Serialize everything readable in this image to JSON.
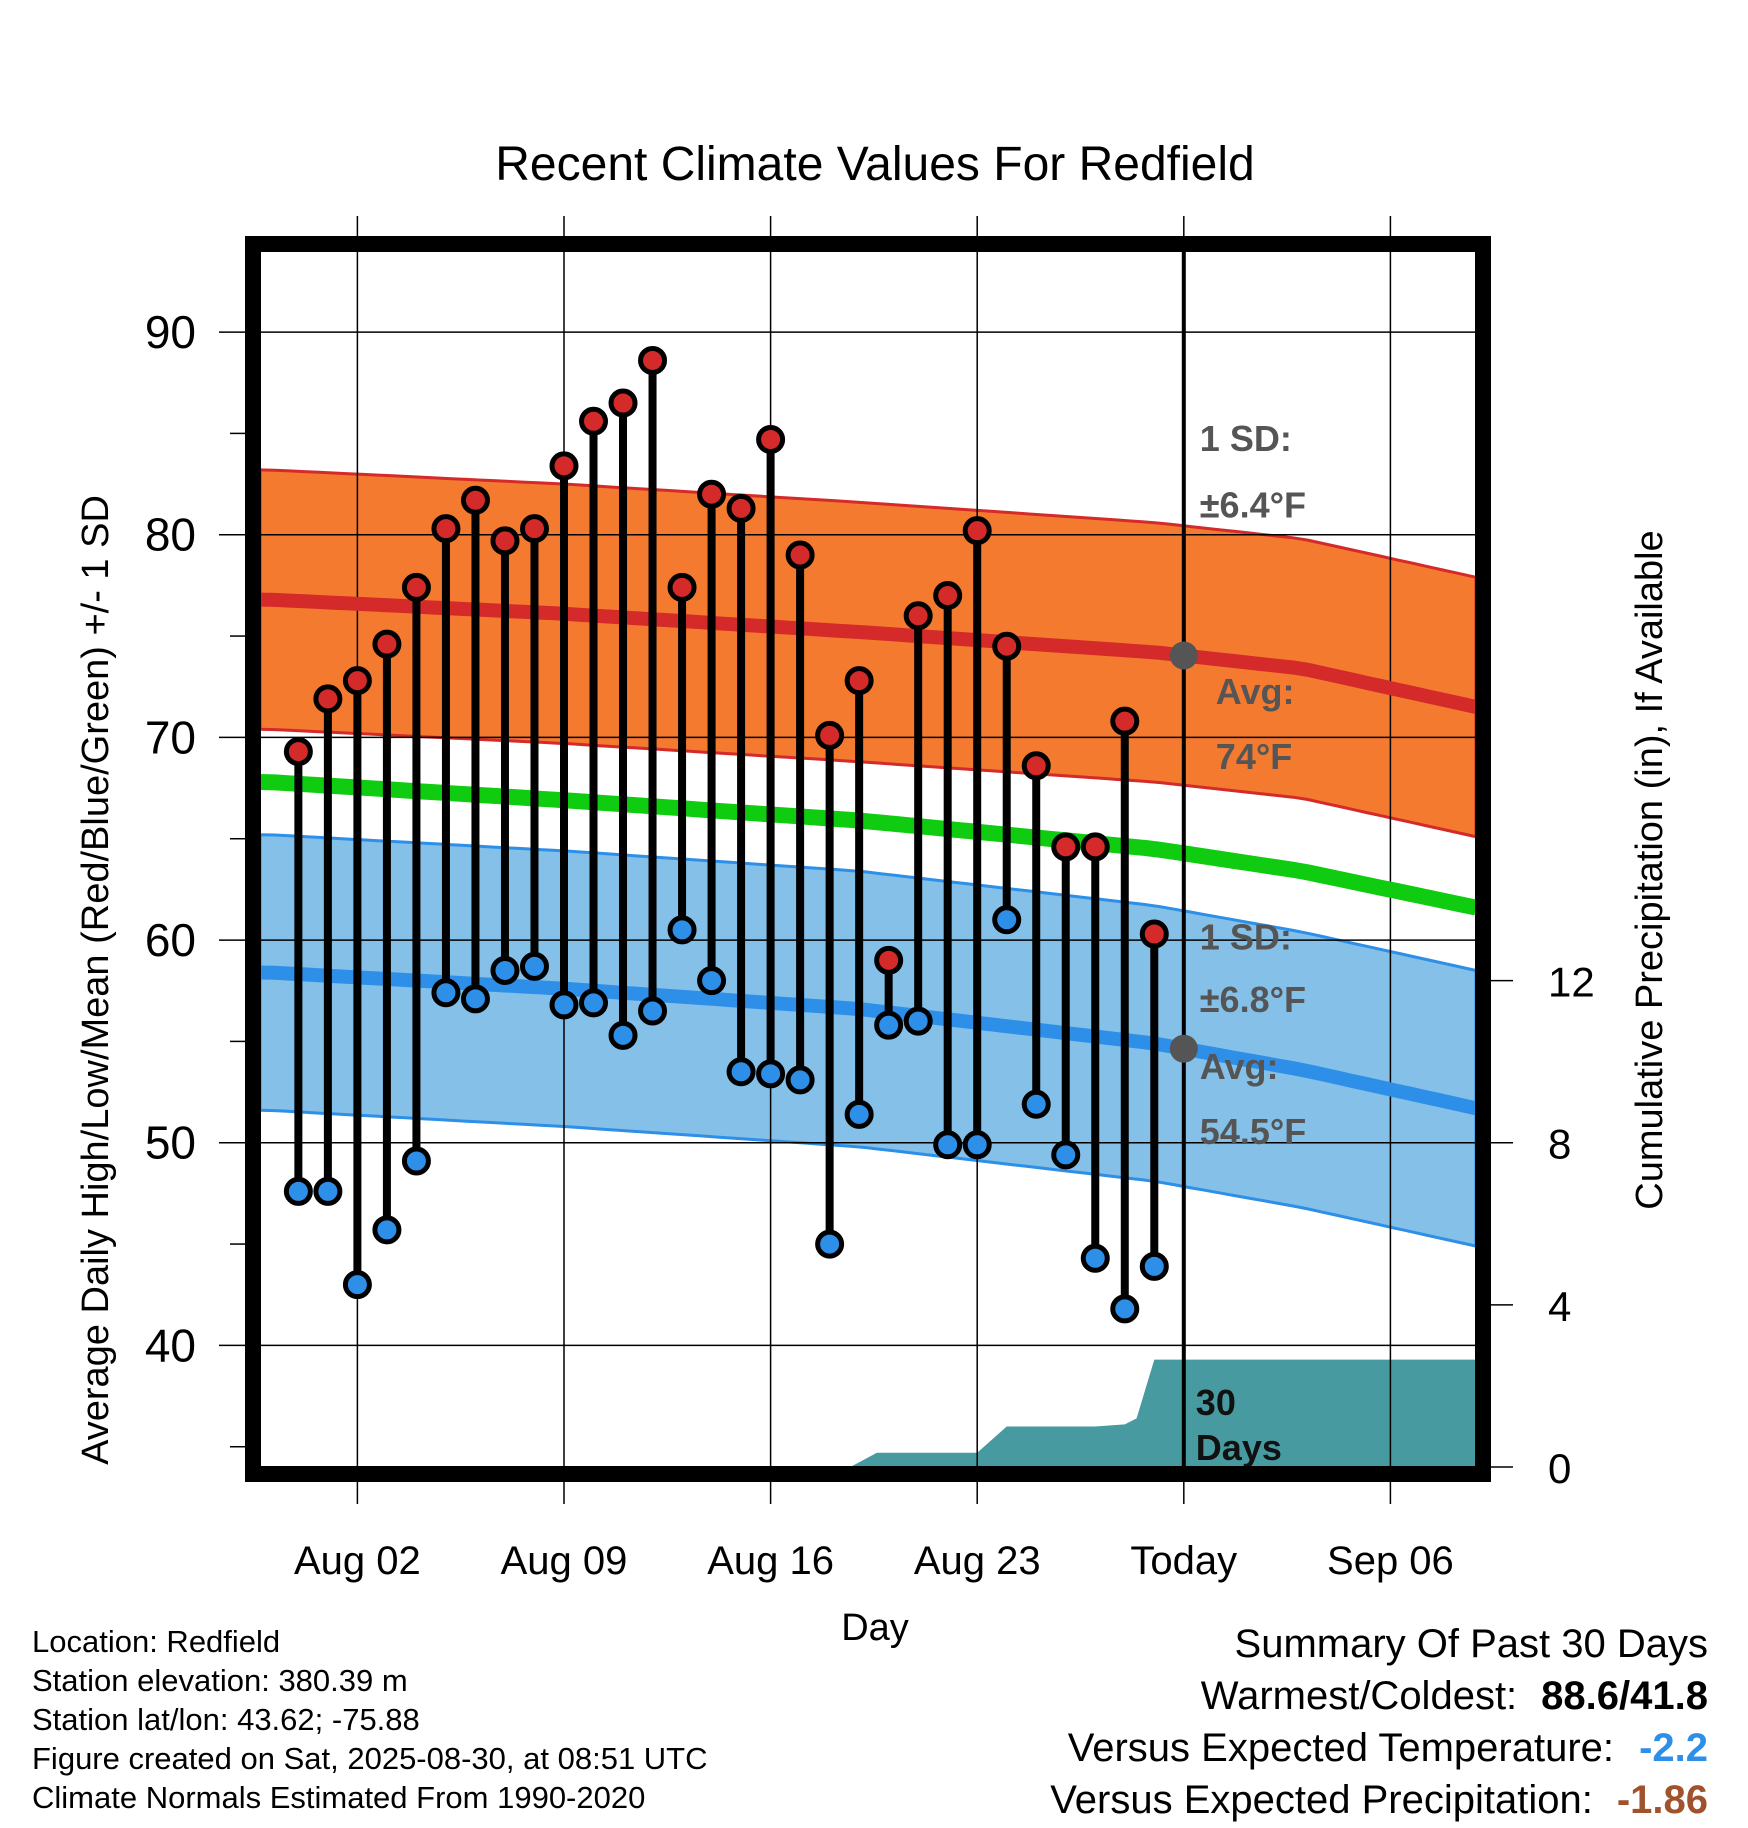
{
  "chart_data": {
    "type": "range-lollipop",
    "title": "Recent Climate Values For Redfield",
    "xlabel": "Day",
    "ylabel_left": "Average Daily High/Low/Mean (Red/Blue/Green) +/- 1 SD",
    "ylabel_right": "Cumulative Precipitation (in), If Available",
    "ylim": [
      34,
      94
    ],
    "yticks": [
      40,
      50,
      60,
      70,
      80,
      90
    ],
    "y2lim": [
      0,
      30
    ],
    "y2ticks": [
      0,
      4,
      8,
      12
    ],
    "xlim": [
      -0.3,
      40.9
    ],
    "xticks": [
      {
        "day": 3,
        "label": "Aug 02"
      },
      {
        "day": 10,
        "label": "Aug 09"
      },
      {
        "day": 17,
        "label": "Aug 16"
      },
      {
        "day": 24,
        "label": "Aug 23"
      },
      {
        "day": 31,
        "label": "Today"
      },
      {
        "day": 38,
        "label": "Sep 06"
      }
    ],
    "today_day": 31,
    "grid": true,
    "colors": {
      "high": "#d42a2a",
      "low": "#2e8fe8",
      "mean": "#10cc10",
      "high_band": "#f47a30",
      "low_band": "#84c0e8",
      "precip": "#469aa0",
      "annotation": "#555555"
    },
    "observed": {
      "days": [
        1,
        2,
        3,
        4,
        5,
        6,
        7,
        8,
        9,
        10,
        11,
        12,
        13,
        14,
        15,
        16,
        17,
        18,
        19,
        20,
        21,
        22,
        23,
        24,
        25,
        26,
        27,
        28,
        29,
        30
      ],
      "highs": [
        69.3,
        71.9,
        72.8,
        74.6,
        77.4,
        80.3,
        81.7,
        79.7,
        80.3,
        83.4,
        85.6,
        86.5,
        88.6,
        77.4,
        82.0,
        81.3,
        84.7,
        79.0,
        70.1,
        72.8,
        59.0,
        76.0,
        77.0,
        80.2,
        74.5,
        68.6,
        64.6,
        64.6,
        70.8,
        60.3
      ],
      "lows": [
        47.6,
        47.6,
        43.0,
        45.7,
        49.1,
        57.4,
        57.1,
        58.5,
        58.7,
        56.8,
        56.9,
        55.3,
        56.5,
        60.5,
        58.0,
        53.5,
        53.4,
        53.1,
        45.0,
        51.4,
        55.8,
        56.0,
        49.9,
        49.9,
        61.0,
        51.9,
        49.4,
        44.3,
        41.8,
        43.9
      ]
    },
    "normals": {
      "days": [
        0,
        10,
        20,
        30,
        35,
        40.9
      ],
      "high_avg": [
        76.8,
        76.1,
        75.2,
        74.2,
        73.4,
        71.5
      ],
      "high_sd": 6.4,
      "low_avg": [
        58.4,
        57.6,
        56.6,
        54.9,
        53.6,
        51.7
      ],
      "low_sd": 6.8,
      "mean_avg": [
        67.8,
        66.9,
        65.9,
        64.5,
        63.4,
        61.6
      ]
    },
    "precipitation": {
      "days": [
        0,
        19.7,
        20.6,
        24.0,
        25.0,
        28.0,
        29.0,
        29.4,
        30.0,
        40.9
      ],
      "cumulative": [
        0,
        0,
        0.35,
        0.35,
        1.0,
        1.0,
        1.05,
        1.2,
        2.65,
        2.65
      ]
    },
    "annotations": {
      "high_sd_label": "1 SD:",
      "high_sd_value": "±6.4°F",
      "high_avg_label": "Avg:",
      "high_avg_value": "74°F",
      "low_sd_label": "1 SD:",
      "low_sd_value": "±6.8°F",
      "low_avg_label": "Avg:",
      "low_avg_value": "54.5°F",
      "period_line1": "30",
      "period_line2": "Days"
    }
  },
  "station_info": {
    "location": "Location: Redfield",
    "elevation": "Station elevation: 380.39 m",
    "latlon": "Station lat/lon: 43.62; -75.88",
    "created": "Figure created on Sat, 2025-08-30, at 08:51 UTC",
    "normals_period": "Climate Normals Estimated From 1990-2020"
  },
  "summary": {
    "heading": "Summary Of Past 30 Days",
    "warmest_coldest_label": "Warmest/Coldest:",
    "warmest_coldest_value": "88.6/41.8",
    "temp_label": "Versus Expected Temperature:",
    "temp_value": "-2.2",
    "temp_color": "#2e8fe8",
    "precip_label": "Versus Expected Precipitation:",
    "precip_value": "-1.86",
    "precip_color": "#a0522d"
  }
}
